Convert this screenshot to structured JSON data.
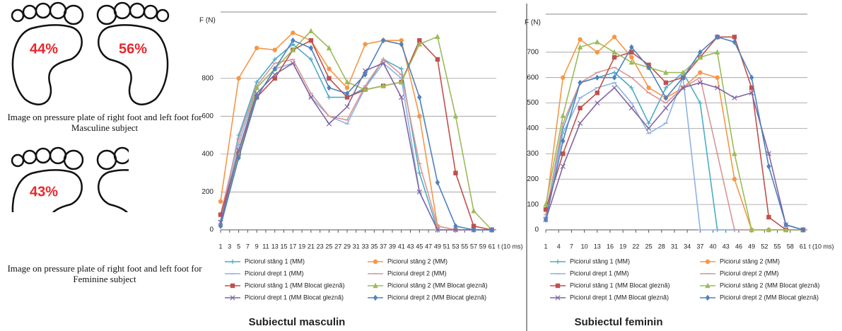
{
  "figures": [
    {
      "percentages": [
        "44%",
        "56%"
      ],
      "caption": "Image on pressure plate of right foot and left foot for Masculine subject"
    },
    {
      "percentages": [
        "43%"
      ],
      "caption": "Image on pressure plate of right foot and left foot for Feminine subject"
    }
  ],
  "chart_data": [
    {
      "type": "line",
      "title": "Subiectul masculin",
      "x_label": "t (10 ms)",
      "y_label": "F (N)",
      "x": [
        1,
        5,
        9,
        13,
        17,
        21,
        25,
        29,
        33,
        37,
        41,
        45,
        49,
        53,
        57,
        61
      ],
      "xlim": [
        1,
        62
      ],
      "xticks": [
        1,
        3,
        5,
        7,
        9,
        11,
        13,
        15,
        17,
        19,
        21,
        23,
        25,
        27,
        29,
        31,
        33,
        35,
        37,
        39,
        41,
        43,
        45,
        47,
        49,
        51,
        53,
        55,
        57,
        59,
        61
      ],
      "ylim": [
        0,
        1150
      ],
      "yticks": [
        0,
        200,
        400,
        600,
        800
      ],
      "grid": true,
      "series": [
        {
          "name": "Piciorul stâng 1 (MM)",
          "color": "#4bacc6",
          "marker": "plus",
          "values": [
            50,
            500,
            780,
            900,
            980,
            900,
            700,
            700,
            750,
            900,
            850,
            300,
            0,
            0,
            0,
            0
          ]
        },
        {
          "name": "Piciorul stâng 2 (MM)",
          "color": "#f79646",
          "marker": "circle",
          "values": [
            150,
            800,
            960,
            950,
            1040,
            1000,
            850,
            750,
            980,
            1000,
            1000,
            600,
            20,
            0,
            0,
            0
          ]
        },
        {
          "name": "Piciorul drept 1 (MM)",
          "color": "#8db3e2",
          "marker": "dash",
          "values": [
            50,
            450,
            750,
            850,
            880,
            700,
            600,
            560,
            750,
            880,
            800,
            200,
            0,
            0,
            0,
            0
          ]
        },
        {
          "name": "Piciorul drept 2 (MM)",
          "color": "#d99694",
          "marker": "dash",
          "values": [
            80,
            480,
            760,
            880,
            900,
            720,
            600,
            580,
            760,
            900,
            820,
            350,
            20,
            0,
            0,
            0
          ]
        },
        {
          "name": "Piciorul stâng 1 (MM Blocat gleznă)",
          "color": "#c0504d",
          "marker": "square",
          "values": [
            80,
            400,
            700,
            800,
            950,
            1000,
            800,
            700,
            740,
            760,
            780,
            1000,
            900,
            300,
            20,
            0
          ]
        },
        {
          "name": "Piciorul stâng 2 (MM Blocat gleznă)",
          "color": "#9bbb59",
          "marker": "triangle",
          "values": [
            30,
            400,
            750,
            850,
            950,
            1050,
            960,
            780,
            740,
            760,
            780,
            980,
            1020,
            600,
            100,
            0
          ]
        },
        {
          "name": "Piciorul drept 1 (MM Blocat gleznă)",
          "color": "#8064a2",
          "marker": "cross",
          "values": [
            40,
            420,
            720,
            820,
            880,
            700,
            560,
            650,
            840,
            880,
            700,
            200,
            0,
            0,
            0,
            0
          ]
        },
        {
          "name": "Piciorul drept 2 (MM Blocat gleznă)",
          "color": "#4f81bd",
          "marker": "diamond",
          "values": [
            20,
            380,
            700,
            850,
            1000,
            960,
            750,
            720,
            820,
            1000,
            980,
            700,
            250,
            20,
            0,
            0
          ]
        }
      ]
    },
    {
      "type": "line",
      "title": "Subiectul feminin",
      "x_label": "t (10 ms)",
      "y_label": "F (N)",
      "x": [
        1,
        5,
        9,
        13,
        17,
        21,
        25,
        29,
        33,
        37,
        41,
        45,
        49,
        53,
        57,
        61
      ],
      "xlim": [
        1,
        62
      ],
      "xticks": [
        1,
        4,
        7,
        10,
        13,
        16,
        19,
        22,
        25,
        28,
        31,
        34,
        37,
        40,
        43,
        46,
        49,
        52,
        55,
        58,
        61
      ],
      "ylim": [
        0,
        850
      ],
      "yticks": [
        0,
        100,
        200,
        300,
        400,
        500,
        600,
        700
      ],
      "grid": true,
      "series": [
        {
          "name": "Piciorul stâng 1 (MM)",
          "color": "#4bacc6",
          "marker": "plus",
          "values": [
            50,
            400,
            580,
            600,
            620,
            560,
            420,
            560,
            620,
            500,
            0,
            0,
            0,
            0,
            0,
            0
          ]
        },
        {
          "name": "Piciorul stâng 2 (MM)",
          "color": "#f79646",
          "marker": "circle",
          "values": [
            80,
            600,
            750,
            700,
            760,
            680,
            560,
            520,
            560,
            620,
            600,
            200,
            0,
            0,
            0,
            0
          ]
        },
        {
          "name": "Piciorul drept 1 (MM)",
          "color": "#8db3e2",
          "marker": "dash",
          "values": [
            50,
            380,
            520,
            560,
            580,
            500,
            380,
            420,
            600,
            0,
            0,
            0,
            0,
            0,
            0,
            0
          ]
        },
        {
          "name": "Piciorul drept 2 (MM)",
          "color": "#d99694",
          "marker": "dash",
          "values": [
            60,
            420,
            580,
            620,
            640,
            600,
            540,
            500,
            560,
            600,
            300,
            0,
            0,
            0,
            0,
            0
          ]
        },
        {
          "name": "Piciorul stâng 1 (MM Blocat gleznă)",
          "color": "#c0504d",
          "marker": "square",
          "values": [
            80,
            300,
            480,
            540,
            680,
            700,
            650,
            580,
            600,
            680,
            760,
            760,
            560,
            50,
            0,
            0
          ]
        },
        {
          "name": "Piciorul stâng 2 (MM Blocat gleznă)",
          "color": "#9bbb59",
          "marker": "triangle",
          "values": [
            100,
            450,
            720,
            740,
            700,
            660,
            640,
            620,
            620,
            680,
            700,
            300,
            0,
            0,
            0,
            0
          ]
        },
        {
          "name": "Piciorul drept 1 (MM Blocat gleznă)",
          "color": "#8064a2",
          "marker": "cross",
          "values": [
            40,
            250,
            420,
            500,
            560,
            480,
            400,
            480,
            560,
            580,
            560,
            520,
            540,
            300,
            20,
            0
          ]
        },
        {
          "name": "Piciorul drept 2 (MM Blocat gleznă)",
          "color": "#4f81bd",
          "marker": "diamond",
          "values": [
            40,
            350,
            580,
            600,
            600,
            720,
            640,
            520,
            600,
            700,
            760,
            740,
            600,
            250,
            20,
            0
          ]
        }
      ]
    }
  ]
}
